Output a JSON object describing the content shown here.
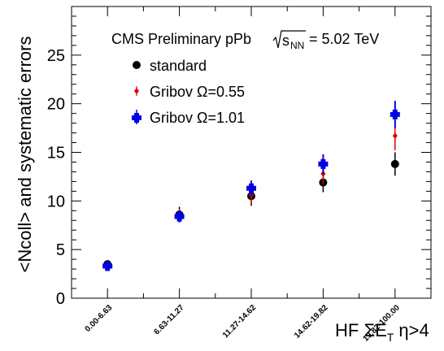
{
  "chart_data": {
    "type": "scatter",
    "title": "CMS Preliminary pPb",
    "title_energy": {
      "symbol": "s",
      "subscript": "NN",
      "value": "= 5.02 TeV"
    },
    "ylabel": "<Ncoll> and systematic errors",
    "xlabel": {
      "prefix": "HF ",
      "sigma": "Σ",
      "e": "E",
      "e_subscript": "T",
      "suffix": " η>4"
    },
    "categories": [
      "0.00-6.63",
      "6.63-11.27",
      "11.27-14.62",
      "14.62-19.82",
      "19.82-100.00"
    ],
    "ylim": [
      0,
      30
    ],
    "yticks": [
      "0",
      "5",
      "10",
      "15",
      "20",
      "25"
    ],
    "grid": false,
    "legend_position": "top-left",
    "series": [
      {
        "name": "standard",
        "color": "#000000",
        "marker": "circle",
        "values": [
          3.5,
          8.6,
          10.5,
          11.9,
          13.8
        ],
        "errors": [
          0.3,
          0.8,
          1.0,
          1.0,
          1.2
        ]
      },
      {
        "name": "Gribov Ω=0.55",
        "color": "#e00000",
        "marker": "diamond",
        "values": [
          3.4,
          8.5,
          10.6,
          12.8,
          16.7
        ],
        "errors": [
          0.3,
          0.7,
          0.9,
          1.1,
          1.5
        ]
      },
      {
        "name": "Gribov Ω=1.01",
        "color": "#0000e0",
        "marker": "cross",
        "values": [
          3.3,
          8.4,
          11.3,
          13.8,
          18.9
        ],
        "errors": [
          0.3,
          0.6,
          0.8,
          1.0,
          1.4
        ]
      }
    ]
  }
}
